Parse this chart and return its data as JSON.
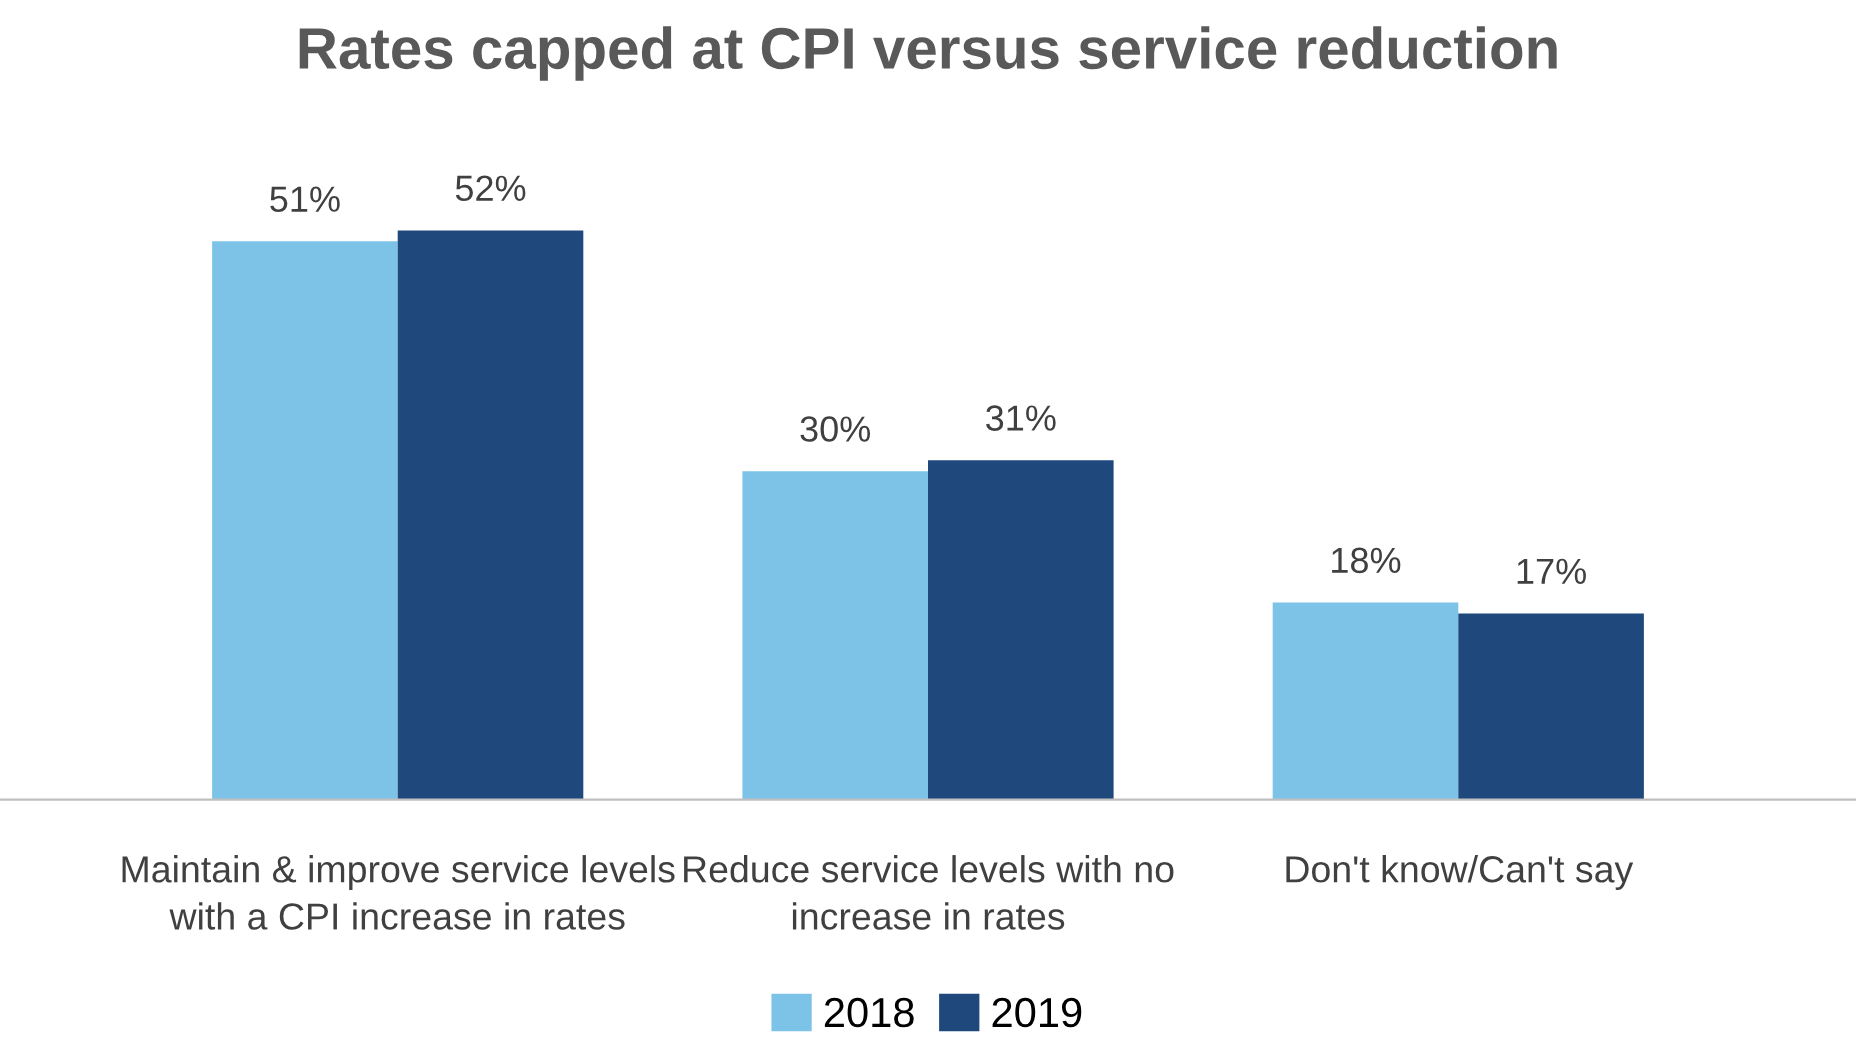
{
  "chart_data": {
    "type": "bar",
    "title": "Rates capped at CPI versus service reduction",
    "categories": [
      "Maintain & improve service levels with a CPI increase in rates",
      "Reduce service levels with no increase in rates",
      "Don't know/Can't say"
    ],
    "series": [
      {
        "name": "2018",
        "color": "#7dc3e8",
        "values": [
          51,
          30,
          18
        ],
        "value_labels": [
          "51%",
          "30%",
          "18%"
        ]
      },
      {
        "name": "2019",
        "color": "#1f497d",
        "values": [
          52,
          31,
          17
        ],
        "value_labels": [
          "52%",
          "31%",
          "17%"
        ]
      }
    ],
    "legend": "bottom",
    "grid": false
  }
}
